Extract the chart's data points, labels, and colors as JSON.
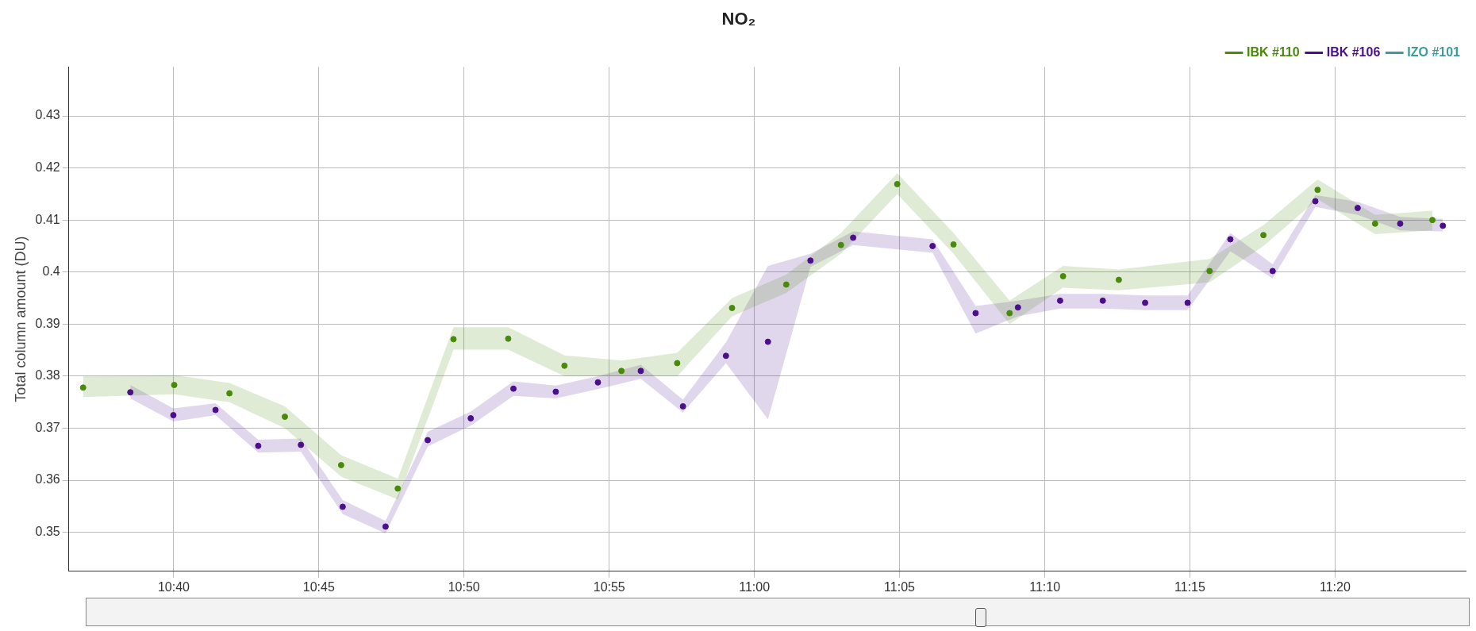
{
  "chart_data": {
    "type": "scatter",
    "title": "NO₂",
    "ylabel": "Total column amount (DU)",
    "xlim": [
      10.6065,
      11.4083
    ],
    "xticks": [
      {
        "value": 10.6667,
        "label": "10:40"
      },
      {
        "value": 10.75,
        "label": "10:45"
      },
      {
        "value": 10.8333,
        "label": "10:50"
      },
      {
        "value": 10.9167,
        "label": "10:55"
      },
      {
        "value": 11,
        "label": "11:00"
      },
      {
        "value": 11.0833,
        "label": "11:05"
      },
      {
        "value": 11.1667,
        "label": "11:10"
      },
      {
        "value": 11.25,
        "label": "11:15"
      },
      {
        "value": 11.3333,
        "label": "11:20"
      }
    ],
    "ylim": [
      0.3425,
      0.4394
    ],
    "yticks": [
      0.35,
      0.36,
      0.37,
      0.38,
      0.39,
      0.4,
      0.41,
      0.42,
      0.43
    ],
    "grid": true,
    "legend": "top right",
    "marker": "circle",
    "series": [
      {
        "name": "IBK #110",
        "color": "#4a8a0a",
        "x": [
          10.6147,
          10.667,
          10.6987,
          10.7305,
          10.7628,
          10.7953,
          10.8273,
          10.8587,
          10.891,
          10.9237,
          10.9557,
          10.9872,
          11.0183,
          11.0497,
          11.082,
          11.1143,
          11.1465,
          11.1772,
          11.2092,
          11.2613,
          11.2922,
          11.3233,
          11.3563,
          11.3892
        ],
        "values": [
          0.3778,
          0.3783,
          0.3767,
          0.3722,
          0.3629,
          0.3584,
          0.3871,
          0.3872,
          0.382,
          0.381,
          0.3825,
          0.3931,
          0.3976,
          0.4052,
          0.4169,
          0.4053,
          0.3921,
          0.3992,
          0.3985,
          0.4002,
          0.4071,
          0.4158,
          0.4093,
          0.41
        ],
        "lower": [
          0.376,
          0.3765,
          0.375,
          0.37,
          0.3607,
          0.3563,
          0.3851,
          0.3851,
          0.38,
          0.38,
          0.38,
          0.3915,
          0.396,
          0.4035,
          0.415,
          0.4035,
          0.39,
          0.397,
          0.3965,
          0.398,
          0.405,
          0.414,
          0.4073,
          0.408
        ],
        "upper": [
          0.38,
          0.3802,
          0.3787,
          0.3742,
          0.3648,
          0.3603,
          0.3894,
          0.3894,
          0.384,
          0.383,
          0.3845,
          0.395,
          0.3995,
          0.4075,
          0.419,
          0.4075,
          0.3945,
          0.4012,
          0.4005,
          0.4025,
          0.409,
          0.4178,
          0.411,
          0.4118
        ]
      },
      {
        "name": "IBK #106",
        "color": "#4b0f8c",
        "x": [
          10.6418,
          10.6665,
          10.6907,
          10.7152,
          10.7397,
          10.7637,
          10.7883,
          10.8125,
          10.8372,
          10.8617,
          10.886,
          10.9102,
          10.9348,
          10.959,
          10.9837,
          11.0078,
          11.0322,
          11.0567,
          11.1023,
          11.127,
          11.1513,
          11.1755,
          11.2,
          11.2243,
          11.2487,
          11.2732,
          11.2975,
          11.322,
          11.3463,
          11.3707,
          11.3952
        ],
        "values": [
          0.3769,
          0.3725,
          0.3735,
          0.3666,
          0.3668,
          0.3549,
          0.3511,
          0.3677,
          0.3719,
          0.3776,
          0.377,
          0.3788,
          0.381,
          0.3742,
          0.3839,
          0.3866,
          0.4022,
          0.4066,
          0.405,
          0.3921,
          0.3932,
          0.3945,
          0.3945,
          0.3941,
          0.3941,
          0.4063,
          0.4002,
          0.4136,
          0.4123,
          0.4093,
          0.4089
        ],
        "lower": [
          0.3757,
          0.3713,
          0.3725,
          0.3653,
          0.3655,
          0.3535,
          0.3498,
          0.3665,
          0.3705,
          0.3762,
          0.3757,
          0.3775,
          0.3795,
          0.373,
          0.3825,
          0.3717,
          0.401,
          0.4052,
          0.4037,
          0.3882,
          0.3915,
          0.393,
          0.393,
          0.3927,
          0.3927,
          0.404,
          0.3988,
          0.4125,
          0.411,
          0.408,
          0.4078
        ],
        "upper": [
          0.3783,
          0.3738,
          0.3748,
          0.3678,
          0.368,
          0.3562,
          0.3522,
          0.3693,
          0.3732,
          0.379,
          0.3782,
          0.38,
          0.3822,
          0.3755,
          0.3865,
          0.4012,
          0.4035,
          0.4078,
          0.4063,
          0.3935,
          0.3945,
          0.3958,
          0.3958,
          0.3955,
          0.3955,
          0.4075,
          0.4015,
          0.4148,
          0.4135,
          0.4106,
          0.4102
        ]
      },
      {
        "name": "IZO #101",
        "color": "#3a9c9c"
      }
    ]
  }
}
